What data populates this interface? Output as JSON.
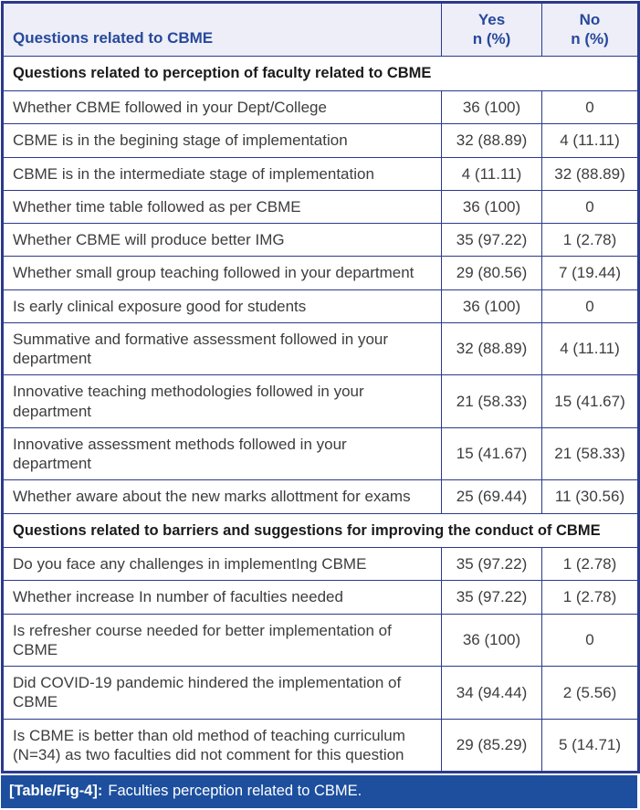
{
  "table": {
    "header": {
      "questions": "Questions related to CBME",
      "yes": "Yes\nn (%)",
      "no": "No\nn (%)"
    },
    "rows": [
      {
        "type": "section",
        "label": "Questions related to perception of faculty related to CBME"
      },
      {
        "type": "data",
        "question": "Whether CBME followed in your Dept/College",
        "yes": "36 (100)",
        "no": "0"
      },
      {
        "type": "data",
        "question": "CBME is in the begining stage of implementation",
        "yes": "32 (88.89)",
        "no": "4 (11.11)"
      },
      {
        "type": "data",
        "question": "CBME is in the intermediate stage of implementation",
        "yes": "4 (11.11)",
        "no": "32 (88.89)"
      },
      {
        "type": "data",
        "question": "Whether time table followed as per CBME",
        "yes": "36 (100)",
        "no": "0"
      },
      {
        "type": "data",
        "question": "Whether CBME will produce better IMG",
        "yes": "35 (97.22)",
        "no": "1 (2.78)"
      },
      {
        "type": "data",
        "question": "Whether small group teaching followed in your department",
        "yes": "29 (80.56)",
        "no": "7 (19.44)"
      },
      {
        "type": "data",
        "question": "Is early clinical exposure good for students",
        "yes": "36 (100)",
        "no": "0"
      },
      {
        "type": "data",
        "question": "Summative and formative assessment followed in your department",
        "yes": "32 (88.89)",
        "no": "4 (11.11)"
      },
      {
        "type": "data",
        "question": "Innovative teaching methodologies followed in your department",
        "yes": "21 (58.33)",
        "no": "15 (41.67)"
      },
      {
        "type": "data",
        "question": "Innovative assessment methods followed in your department",
        "yes": "15 (41.67)",
        "no": "21 (58.33)"
      },
      {
        "type": "data",
        "question": "Whether aware about the new marks allottment for exams",
        "yes": "25 (69.44)",
        "no": "11 (30.56)"
      },
      {
        "type": "section",
        "label": "Questions related to barriers and suggestions for improving the conduct of CBME"
      },
      {
        "type": "data",
        "question": "Do you face any challenges in implementIng CBME",
        "yes": "35 (97.22)",
        "no": "1 (2.78)"
      },
      {
        "type": "data",
        "question": "Whether increase In number of faculties needed",
        "yes": "35 (97.22)",
        "no": "1 (2.78)"
      },
      {
        "type": "data",
        "question": "Is refresher course needed for better implementation of CBME",
        "yes": "36 (100)",
        "no": "0"
      },
      {
        "type": "data",
        "question": "Did COVID-19 pandemic hindered the implementation of CBME",
        "yes": "34 (94.44)",
        "no": "2 (5.56)"
      },
      {
        "type": "data",
        "question": "Is CBME is better than old method of teaching curriculum (N=34) as two faculties did not comment for this question",
        "yes": "29 (85.29)",
        "no": "5 (14.71)"
      }
    ],
    "caption": {
      "tag": "[Table/Fig-4]:",
      "text": "Faculties perception related to CBME."
    }
  },
  "colors": {
    "border": "#2b3a8c",
    "header_background": "#edeef7",
    "header_text": "#27489b",
    "body_text": "#3d3d3d",
    "section_text": "#1b1b1b",
    "caption_background": "#1d4f9e",
    "caption_text": "#ffffff"
  }
}
